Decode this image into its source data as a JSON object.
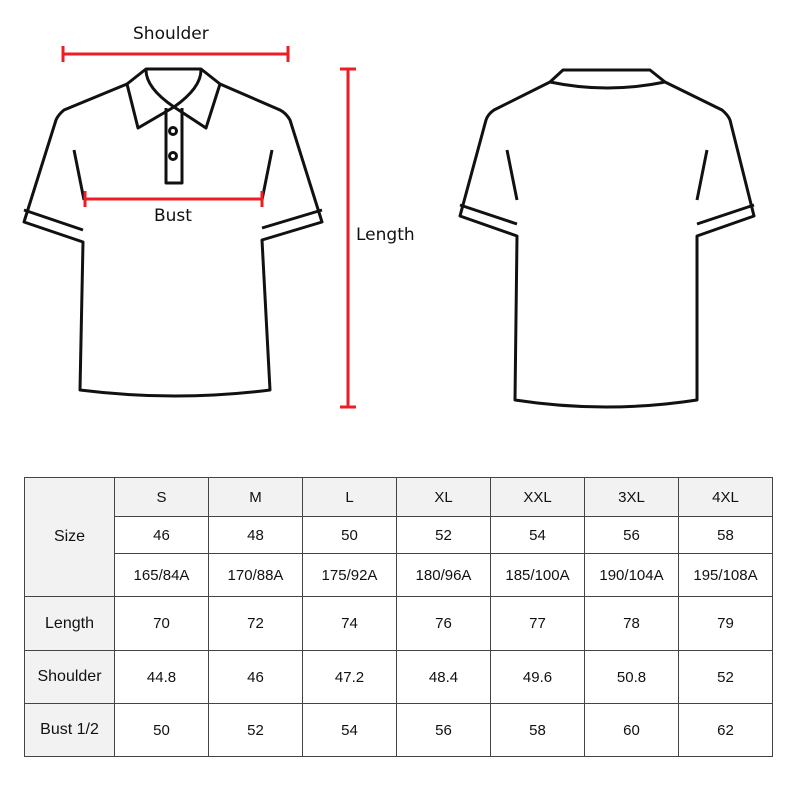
{
  "diagram": {
    "shoulder_label": "Shoulder",
    "bust_label": "Bust",
    "length_label": "Length",
    "measure_color": "#ee1c24"
  },
  "table": {
    "size_label": "Size",
    "sizes": [
      "S",
      "M",
      "L",
      "XL",
      "XXL",
      "3XL",
      "4XL"
    ],
    "eu_sizes": [
      "46",
      "48",
      "50",
      "52",
      "54",
      "56",
      "58"
    ],
    "height_chest": [
      "165/84A",
      "170/88A",
      "175/92A",
      "180/96A",
      "185/100A",
      "190/104A",
      "195/108A"
    ],
    "rows": [
      {
        "label": "Length",
        "values": [
          "70",
          "72",
          "74",
          "76",
          "77",
          "78",
          "79"
        ]
      },
      {
        "label": "Shoulder",
        "values": [
          "44.8",
          "46",
          "47.2",
          "48.4",
          "49.6",
          "50.8",
          "52"
        ]
      },
      {
        "label": "Bust 1/2",
        "values": [
          "50",
          "52",
          "54",
          "56",
          "58",
          "60",
          "62"
        ]
      }
    ]
  }
}
